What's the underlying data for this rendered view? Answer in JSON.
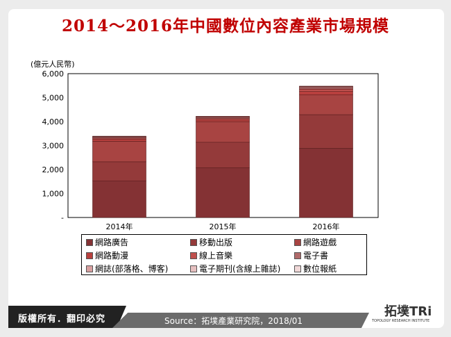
{
  "title": "2014～2016年中國數位內容產業市場規模",
  "footer": {
    "copyright": "版權所有．翻印必究",
    "source": "Source：拓墣產業研究院，2018/01",
    "logo_text": "拓墣TRi",
    "logo_sub": "TOPOLOGY RESEARCH INSTITUTE"
  },
  "chart_data": {
    "type": "bar",
    "stacked": true,
    "ylabel": "(億元人民幣)",
    "ylim": [
      0,
      6000
    ],
    "yticks": [
      "-",
      "1,000",
      "2,000",
      "3,000",
      "4,000",
      "5,000",
      "6,000"
    ],
    "categories": [
      "2014年",
      "2015年",
      "2016年"
    ],
    "legend_position": "bottom",
    "series": [
      {
        "name": "網路廣告",
        "color": "#843234",
        "values": [
          1530,
          2072,
          2885
        ]
      },
      {
        "name": "移動出版",
        "color": "#943a3a",
        "values": [
          793,
          1065,
          1404
        ]
      },
      {
        "name": "網路遊戲",
        "color": "#a84442",
        "values": [
          852,
          861,
          822
        ]
      },
      {
        "name": "網路動漫",
        "color": "#b8403e",
        "values": [
          78,
          68,
          146
        ]
      },
      {
        "name": "線上音樂",
        "color": "#c0504d",
        "values": [
          50,
          58,
          96
        ]
      },
      {
        "name": "電子書",
        "color": "#b06a6a",
        "values": [
          40,
          45,
          60
        ]
      },
      {
        "name": "網誌(部落格、博客)",
        "color": "#d8a0a0",
        "values": [
          25,
          28,
          40
        ]
      },
      {
        "name": "電子期刊(含線上雜誌)",
        "color": "#e6c0c0",
        "values": [
          12,
          14,
          15
        ]
      },
      {
        "name": "數位報紙",
        "color": "#f0d8d8",
        "values": [
          10,
          10,
          11
        ]
      }
    ]
  }
}
